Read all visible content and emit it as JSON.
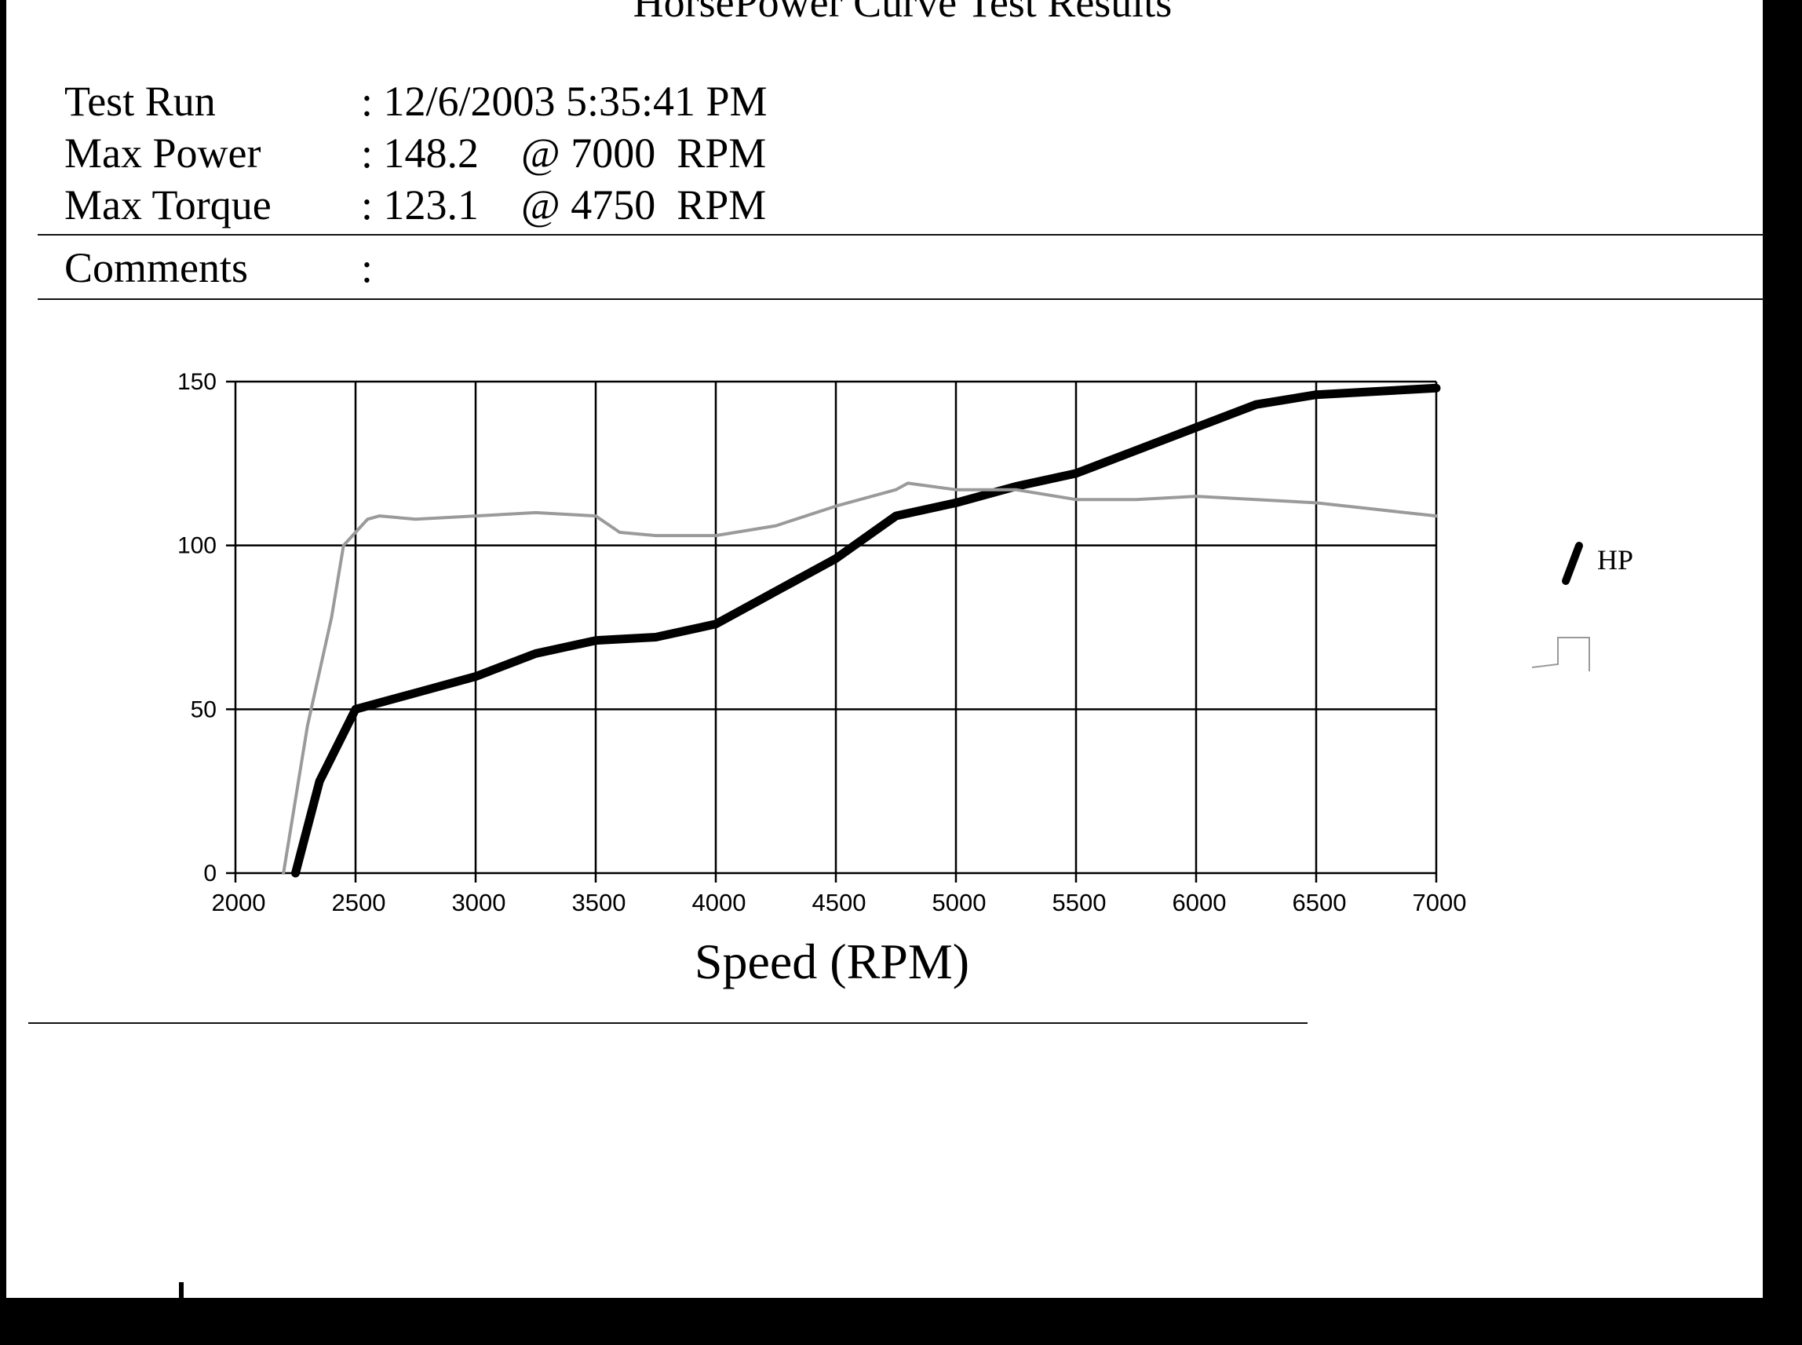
{
  "header": {
    "title": "HorsePower Curve Test Results"
  },
  "info": {
    "test_run_label": "Test Run",
    "test_run_value": ": 12/6/2003 5:35:41 PM",
    "max_power_label": "Max Power",
    "max_power_value": ": 148.2    @ 7000  RPM",
    "max_torque_label": "Max Torque",
    "max_torque_value": ": 123.1    @ 4750  RPM",
    "comments_label": "Comments",
    "comments_value": ":"
  },
  "colors": {
    "hp": "#000000",
    "torque": "#9a9a9a",
    "grid": "#000000"
  },
  "chart_data": {
    "type": "line",
    "title": "",
    "xlabel": "Speed (RPM)",
    "ylabel": "",
    "xlim": [
      2000,
      7000
    ],
    "ylim": [
      0,
      150
    ],
    "xticks": [
      2000,
      2500,
      3000,
      3500,
      4000,
      4500,
      5000,
      5500,
      6000,
      6500,
      7000
    ],
    "yticks": [
      0,
      50,
      100,
      150
    ],
    "grid": true,
    "legend": "right",
    "series": [
      {
        "name": "HP",
        "x": [
          2250,
          2350,
          2500,
          2750,
          3000,
          3250,
          3500,
          3750,
          4000,
          4250,
          4500,
          4750,
          5000,
          5250,
          5500,
          5750,
          6000,
          6250,
          6500,
          6750,
          7000
        ],
        "y": [
          0,
          28,
          50,
          55,
          60,
          67,
          71,
          72,
          76,
          86,
          96,
          109,
          113,
          118,
          122,
          129,
          136,
          143,
          146,
          147,
          148
        ]
      },
      {
        "name": "",
        "x": [
          2200,
          2300,
          2400,
          2450,
          2500,
          2550,
          2600,
          2750,
          3000,
          3250,
          3500,
          3600,
          3750,
          4000,
          4250,
          4500,
          4750,
          4800,
          5000,
          5250,
          5500,
          5750,
          6000,
          6250,
          6500,
          6750,
          7000
        ],
        "y": [
          0,
          45,
          78,
          100,
          104,
          108,
          109,
          108,
          109,
          110,
          109,
          104,
          103,
          103,
          106,
          112,
          117,
          119,
          117,
          117,
          114,
          114,
          115,
          114,
          113,
          111,
          109
        ]
      }
    ]
  }
}
